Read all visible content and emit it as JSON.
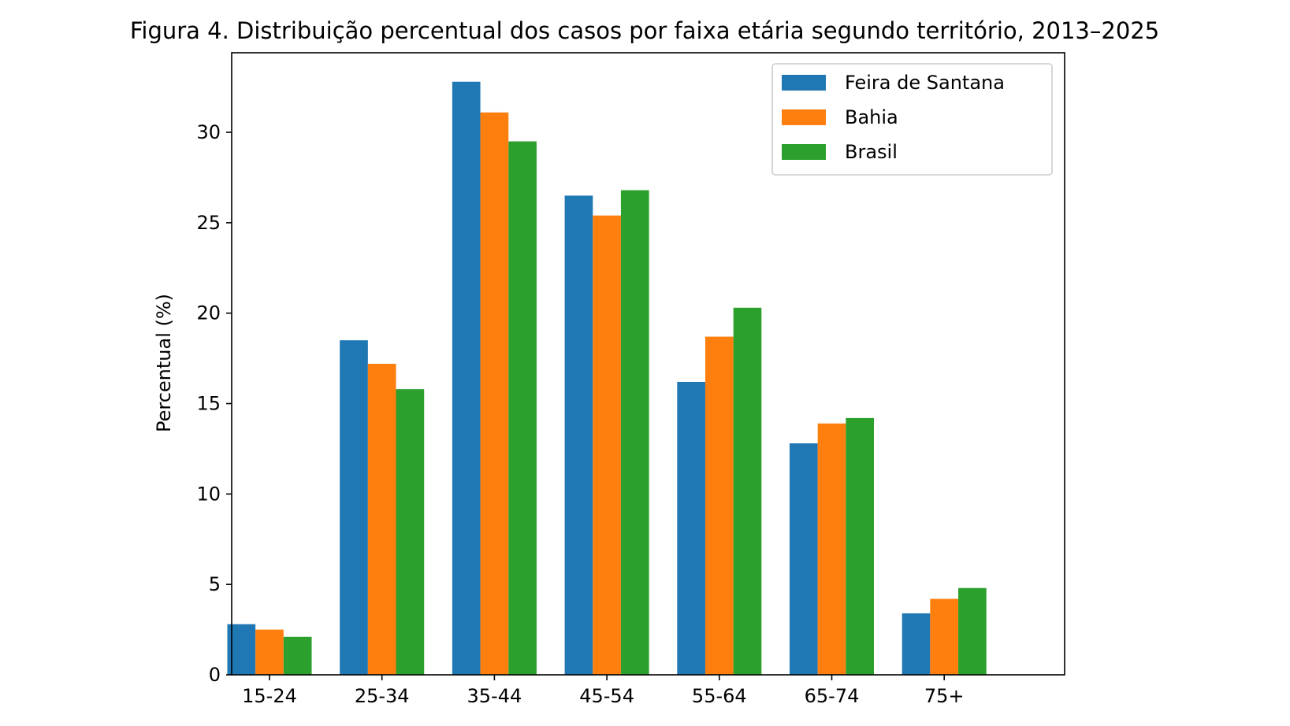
{
  "chart_data": {
    "type": "bar",
    "title": "Figura 4. Distribuição percentual dos casos por faixa etária segundo território, 2013–2025",
    "xlabel": "",
    "ylabel": "Percentual (%)",
    "categories": [
      "15-24",
      "25-34",
      "35-44",
      "45-54",
      "55-64",
      "65-74",
      "75+"
    ],
    "series": [
      {
        "name": "Feira de Santana",
        "color": "#1f77b4",
        "values": [
          2.8,
          18.5,
          32.8,
          26.5,
          16.2,
          12.8,
          3.4
        ]
      },
      {
        "name": "Bahia",
        "color": "#ff7f0e",
        "values": [
          2.5,
          17.2,
          31.1,
          25.4,
          18.7,
          13.9,
          4.2
        ]
      },
      {
        "name": "Brasil",
        "color": "#2ca02c",
        "values": [
          2.1,
          15.8,
          29.5,
          26.8,
          20.3,
          14.2,
          4.8
        ]
      }
    ],
    "ylim": [
      0,
      34.4
    ],
    "yticks": [
      0,
      5,
      10,
      15,
      20,
      25,
      30
    ],
    "grid": false,
    "legend_position": "top-right"
  }
}
